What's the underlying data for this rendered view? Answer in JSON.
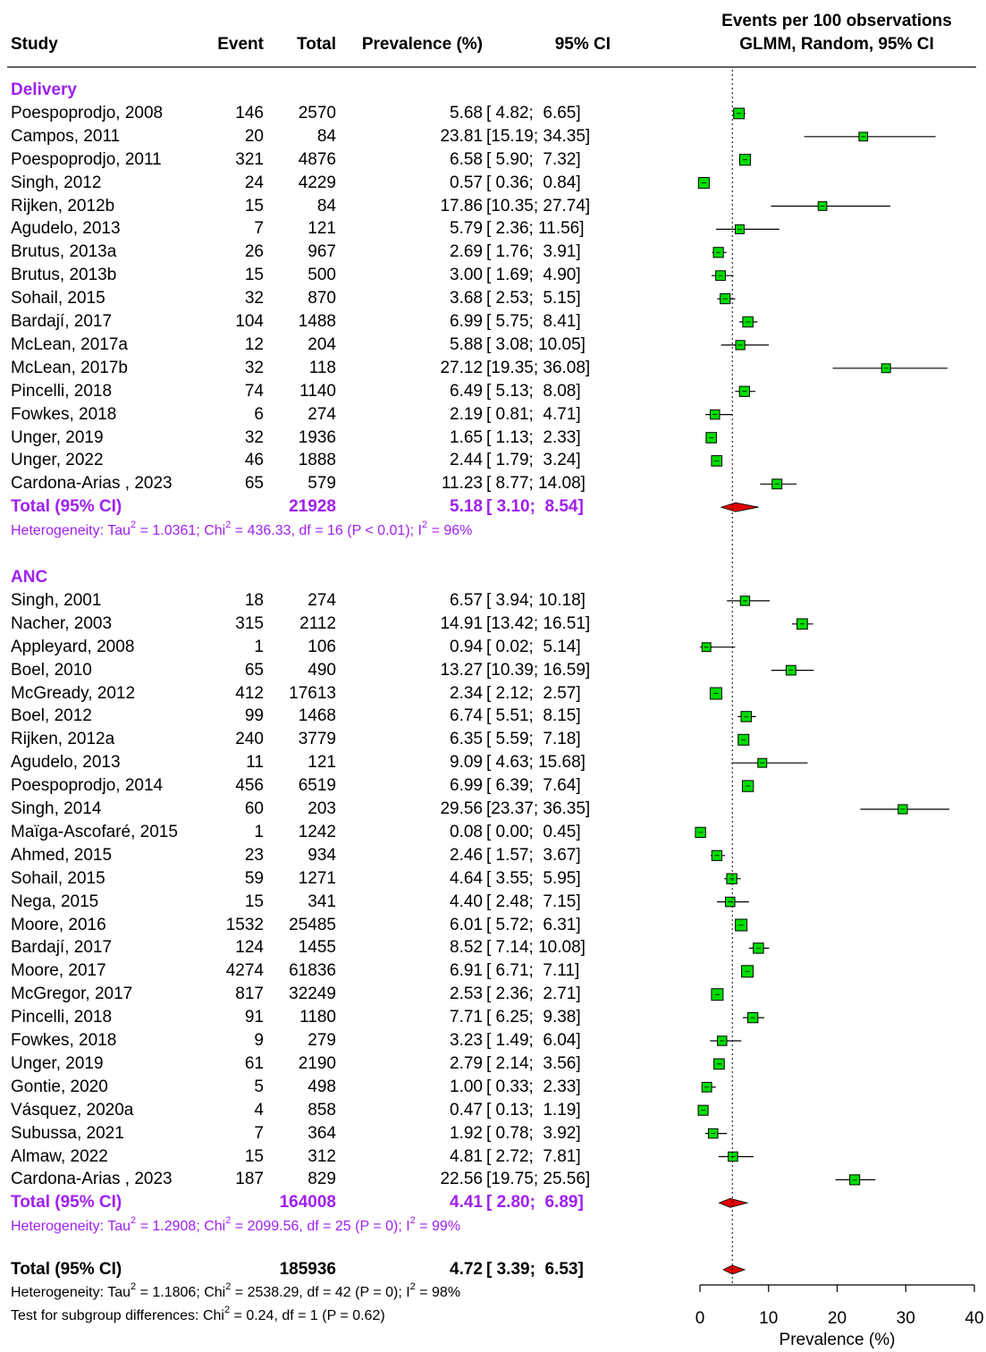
{
  "chart_data": {
    "type": "forest",
    "header": {
      "study": "Study",
      "event": "Event",
      "total": "Total",
      "prevalence": "Prevalence (%)",
      "ci": "95% CI",
      "right_title_line1": "Events per 100 observations",
      "right_title_line2": "GLMM, Random, 95% CI"
    },
    "xlabel": "Prevalence (%)",
    "xlim": [
      0,
      40
    ],
    "xticks": [
      "0",
      "10",
      "20",
      "30",
      "40"
    ],
    "xtick_values": [
      0,
      10,
      20,
      30,
      40
    ],
    "reference_line": 4.72,
    "colors": {
      "box": "#00dd00",
      "diamond": "#e00000",
      "subgroup": "#a020f0",
      "axis": "#000000"
    },
    "groups": [
      {
        "name": "Delivery",
        "studies": [
          {
            "study": "Poespoprodjo, 2008",
            "event": "146",
            "total": "2570",
            "prev": "5.68",
            "ci": "[ 4.82;  6.65]",
            "est": 5.68,
            "lo": 4.82,
            "hi": 6.65
          },
          {
            "study": "Campos, 2011",
            "event": "20",
            "total": "84",
            "prev": "23.81",
            "ci": "[15.19; 34.35]",
            "est": 23.81,
            "lo": 15.19,
            "hi": 34.35
          },
          {
            "study": "Poespoprodjo, 2011",
            "event": "321",
            "total": "4876",
            "prev": "6.58",
            "ci": "[ 5.90;  7.32]",
            "est": 6.58,
            "lo": 5.9,
            "hi": 7.32
          },
          {
            "study": "Singh, 2012",
            "event": "24",
            "total": "4229",
            "prev": "0.57",
            "ci": "[ 0.36;  0.84]",
            "est": 0.57,
            "lo": 0.36,
            "hi": 0.84
          },
          {
            "study": "Rijken, 2012b",
            "event": "15",
            "total": "84",
            "prev": "17.86",
            "ci": "[10.35; 27.74]",
            "est": 17.86,
            "lo": 10.35,
            "hi": 27.74
          },
          {
            "study": "Agudelo, 2013",
            "event": "7",
            "total": "121",
            "prev": "5.79",
            "ci": "[ 2.36; 11.56]",
            "est": 5.79,
            "lo": 2.36,
            "hi": 11.56
          },
          {
            "study": "Brutus, 2013a",
            "event": "26",
            "total": "967",
            "prev": "2.69",
            "ci": "[ 1.76;  3.91]",
            "est": 2.69,
            "lo": 1.76,
            "hi": 3.91
          },
          {
            "study": "Brutus, 2013b",
            "event": "15",
            "total": "500",
            "prev": "3.00",
            "ci": "[ 1.69;  4.90]",
            "est": 3.0,
            "lo": 1.69,
            "hi": 4.9
          },
          {
            "study": "Sohail, 2015",
            "event": "32",
            "total": "870",
            "prev": "3.68",
            "ci": "[ 2.53;  5.15]",
            "est": 3.68,
            "lo": 2.53,
            "hi": 5.15
          },
          {
            "study": "Bardají, 2017",
            "event": "104",
            "total": "1488",
            "prev": "6.99",
            "ci": "[ 5.75;  8.41]",
            "est": 6.99,
            "lo": 5.75,
            "hi": 8.41
          },
          {
            "study": "McLean, 2017a",
            "event": "12",
            "total": "204",
            "prev": "5.88",
            "ci": "[ 3.08; 10.05]",
            "est": 5.88,
            "lo": 3.08,
            "hi": 10.05
          },
          {
            "study": "McLean, 2017b",
            "event": "32",
            "total": "118",
            "prev": "27.12",
            "ci": "[19.35; 36.08]",
            "est": 27.12,
            "lo": 19.35,
            "hi": 36.08
          },
          {
            "study": "Pincelli, 2018",
            "event": "74",
            "total": "1140",
            "prev": "6.49",
            "ci": "[ 5.13;  8.08]",
            "est": 6.49,
            "lo": 5.13,
            "hi": 8.08
          },
          {
            "study": "Fowkes, 2018",
            "event": "6",
            "total": "274",
            "prev": "2.19",
            "ci": "[ 0.81;  4.71]",
            "est": 2.19,
            "lo": 0.81,
            "hi": 4.71
          },
          {
            "study": "Unger, 2019",
            "event": "32",
            "total": "1936",
            "prev": "1.65",
            "ci": "[ 1.13;  2.33]",
            "est": 1.65,
            "lo": 1.13,
            "hi": 2.33
          },
          {
            "study": "Unger, 2022",
            "event": "46",
            "total": "1888",
            "prev": "2.44",
            "ci": "[ 1.79;  3.24]",
            "est": 2.44,
            "lo": 1.79,
            "hi": 3.24
          },
          {
            "study": "Cardona-Arias , 2023",
            "event": "65",
            "total": "579",
            "prev": "11.23",
            "ci": "[ 8.77; 14.08]",
            "est": 11.23,
            "lo": 8.77,
            "hi": 14.08
          }
        ],
        "total": {
          "label": "Total (95% CI)",
          "total": "21928",
          "prev": "5.18",
          "ci": "[ 3.10;  8.54]",
          "est": 5.18,
          "lo": 3.1,
          "hi": 8.54
        },
        "het": {
          "tau2": "1.0361",
          "chi2": "436.33",
          "df": "16",
          "p": "P < 0.01",
          "i2": "96%"
        }
      },
      {
        "name": "ANC",
        "studies": [
          {
            "study": "Singh, 2001",
            "event": "18",
            "total": "274",
            "prev": "6.57",
            "ci": "[ 3.94; 10.18]",
            "est": 6.57,
            "lo": 3.94,
            "hi": 10.18
          },
          {
            "study": "Nacher, 2003",
            "event": "315",
            "total": "2112",
            "prev": "14.91",
            "ci": "[13.42; 16.51]",
            "est": 14.91,
            "lo": 13.42,
            "hi": 16.51
          },
          {
            "study": "Appleyard, 2008",
            "event": "1",
            "total": "106",
            "prev": "0.94",
            "ci": "[ 0.02;  5.14]",
            "est": 0.94,
            "lo": 0.02,
            "hi": 5.14
          },
          {
            "study": "Boel, 2010",
            "event": "65",
            "total": "490",
            "prev": "13.27",
            "ci": "[10.39; 16.59]",
            "est": 13.27,
            "lo": 10.39,
            "hi": 16.59
          },
          {
            "study": "McGready, 2012",
            "event": "412",
            "total": "17613",
            "prev": "2.34",
            "ci": "[ 2.12;  2.57]",
            "est": 2.34,
            "lo": 2.12,
            "hi": 2.57
          },
          {
            "study": "Boel, 2012",
            "event": "99",
            "total": "1468",
            "prev": "6.74",
            "ci": "[ 5.51;  8.15]",
            "est": 6.74,
            "lo": 5.51,
            "hi": 8.15
          },
          {
            "study": "Rijken, 2012a",
            "event": "240",
            "total": "3779",
            "prev": "6.35",
            "ci": "[ 5.59;  7.18]",
            "est": 6.35,
            "lo": 5.59,
            "hi": 7.18
          },
          {
            "study": "Agudelo, 2013",
            "event": "11",
            "total": "121",
            "prev": "9.09",
            "ci": "[ 4.63; 15.68]",
            "est": 9.09,
            "lo": 4.63,
            "hi": 15.68
          },
          {
            "study": "Poespoprodjo, 2014",
            "event": "456",
            "total": "6519",
            "prev": "6.99",
            "ci": "[ 6.39;  7.64]",
            "est": 6.99,
            "lo": 6.39,
            "hi": 7.64
          },
          {
            "study": "Singh, 2014",
            "event": "60",
            "total": "203",
            "prev": "29.56",
            "ci": "[23.37; 36.35]",
            "est": 29.56,
            "lo": 23.37,
            "hi": 36.35
          },
          {
            "study": "Maïga-Ascofaré, 2015",
            "event": "1",
            "total": "1242",
            "prev": "0.08",
            "ci": "[ 0.00;  0.45]",
            "est": 0.08,
            "lo": 0.0,
            "hi": 0.45
          },
          {
            "study": "Ahmed, 2015",
            "event": "23",
            "total": "934",
            "prev": "2.46",
            "ci": "[ 1.57;  3.67]",
            "est": 2.46,
            "lo": 1.57,
            "hi": 3.67
          },
          {
            "study": "Sohail, 2015",
            "event": "59",
            "total": "1271",
            "prev": "4.64",
            "ci": "[ 3.55;  5.95]",
            "est": 4.64,
            "lo": 3.55,
            "hi": 5.95
          },
          {
            "study": "Nega, 2015",
            "event": "15",
            "total": "341",
            "prev": "4.40",
            "ci": "[ 2.48;  7.15]",
            "est": 4.4,
            "lo": 2.48,
            "hi": 7.15
          },
          {
            "study": "Moore, 2016",
            "event": "1532",
            "total": "25485",
            "prev": "6.01",
            "ci": "[ 5.72;  6.31]",
            "est": 6.01,
            "lo": 5.72,
            "hi": 6.31
          },
          {
            "study": "Bardají, 2017",
            "event": "124",
            "total": "1455",
            "prev": "8.52",
            "ci": "[ 7.14; 10.08]",
            "est": 8.52,
            "lo": 7.14,
            "hi": 10.08
          },
          {
            "study": "Moore, 2017",
            "event": "4274",
            "total": "61836",
            "prev": "6.91",
            "ci": "[ 6.71;  7.11]",
            "est": 6.91,
            "lo": 6.71,
            "hi": 7.11
          },
          {
            "study": "McGregor, 2017",
            "event": "817",
            "total": "32249",
            "prev": "2.53",
            "ci": "[ 2.36;  2.71]",
            "est": 2.53,
            "lo": 2.36,
            "hi": 2.71
          },
          {
            "study": "Pincelli, 2018",
            "event": "91",
            "total": "1180",
            "prev": "7.71",
            "ci": "[ 6.25;  9.38]",
            "est": 7.71,
            "lo": 6.25,
            "hi": 9.38
          },
          {
            "study": "Fowkes, 2018",
            "event": "9",
            "total": "279",
            "prev": "3.23",
            "ci": "[ 1.49;  6.04]",
            "est": 3.23,
            "lo": 1.49,
            "hi": 6.04
          },
          {
            "study": "Unger, 2019",
            "event": "61",
            "total": "2190",
            "prev": "2.79",
            "ci": "[ 2.14;  3.56]",
            "est": 2.79,
            "lo": 2.14,
            "hi": 3.56
          },
          {
            "study": "Gontie, 2020",
            "event": "5",
            "total": "498",
            "prev": "1.00",
            "ci": "[ 0.33;  2.33]",
            "est": 1.0,
            "lo": 0.33,
            "hi": 2.33
          },
          {
            "study": "Vásquez, 2020a",
            "event": "4",
            "total": "858",
            "prev": "0.47",
            "ci": "[ 0.13;  1.19]",
            "est": 0.47,
            "lo": 0.13,
            "hi": 1.19
          },
          {
            "study": "Subussa, 2021",
            "event": "7",
            "total": "364",
            "prev": "1.92",
            "ci": "[ 0.78;  3.92]",
            "est": 1.92,
            "lo": 0.78,
            "hi": 3.92
          },
          {
            "study": "Almaw, 2022",
            "event": "15",
            "total": "312",
            "prev": "4.81",
            "ci": "[ 2.72;  7.81]",
            "est": 4.81,
            "lo": 2.72,
            "hi": 7.81
          },
          {
            "study": "Cardona-Arias , 2023",
            "event": "187",
            "total": "829",
            "prev": "22.56",
            "ci": "[19.75; 25.56]",
            "est": 22.56,
            "lo": 19.75,
            "hi": 25.56
          }
        ],
        "total": {
          "label": "Total (95% CI)",
          "total": "164008",
          "prev": "4.41",
          "ci": "[ 2.80;  6.89]",
          "est": 4.41,
          "lo": 2.8,
          "hi": 6.89
        },
        "het": {
          "tau2": "1.2908",
          "chi2": "2099.56",
          "df": "25",
          "p": "P = 0",
          "i2": "99%"
        }
      }
    ],
    "overall": {
      "label": "Total (95% CI)",
      "total": "185936",
      "prev": "4.72",
      "ci": "[ 3.39;  6.53]",
      "est": 4.72,
      "lo": 3.39,
      "hi": 6.53,
      "het": {
        "tau2": "1.1806",
        "chi2": "2538.29",
        "df": "42",
        "p": "P = 0",
        "i2": "98%"
      },
      "subgroup_test": {
        "chi2": "0.24",
        "df": "1",
        "p": "P = 0.62"
      }
    }
  }
}
